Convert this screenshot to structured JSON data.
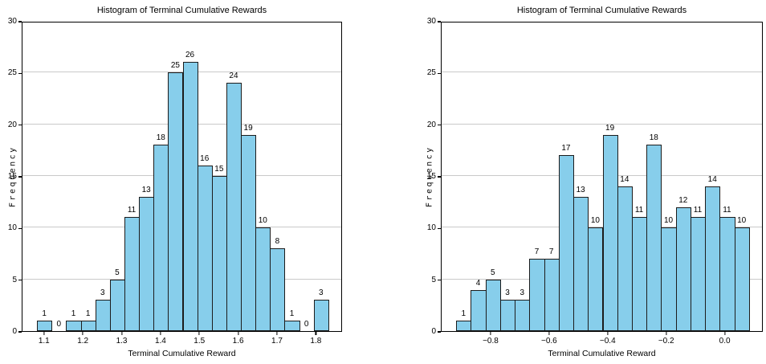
{
  "figure": {
    "background": "#ffffff",
    "text_color": "#000000"
  },
  "chart_data": [
    {
      "type": "bar",
      "subtype": "histogram",
      "title": "Histogram of Terminal Cumulative Rewards",
      "xlabel": "Terminal Cumulative Reward",
      "ylabel": "Frequency",
      "bar_color": "#87CEEB",
      "bar_edge_color": "#1c1c1c",
      "grid_color": "#c9c9c9",
      "grid": "horizontal",
      "legend": "none",
      "bin_start": 1.08,
      "bin_width": 0.0375,
      "values": [
        1,
        0,
        1,
        1,
        3,
        5,
        11,
        13,
        18,
        25,
        26,
        16,
        15,
        24,
        19,
        10,
        8,
        1,
        0,
        3
      ],
      "xlim": [
        1.0425,
        1.8675
      ],
      "ylim": [
        0,
        30
      ],
      "xticks": [
        {
          "v": 1.1,
          "label": "1.1"
        },
        {
          "v": 1.2,
          "label": "1.2"
        },
        {
          "v": 1.3,
          "label": "1.3"
        },
        {
          "v": 1.4,
          "label": "1.4"
        },
        {
          "v": 1.5,
          "label": "1.5"
        },
        {
          "v": 1.6,
          "label": "1.6"
        },
        {
          "v": 1.7,
          "label": "1.7"
        },
        {
          "v": 1.8,
          "label": "1.8"
        }
      ],
      "yticks": [
        {
          "v": 0,
          "label": "0"
        },
        {
          "v": 5,
          "label": "5"
        },
        {
          "v": 10,
          "label": "10"
        },
        {
          "v": 15,
          "label": "15"
        },
        {
          "v": 20,
          "label": "20"
        },
        {
          "v": 25,
          "label": "25"
        },
        {
          "v": 30,
          "label": "30"
        }
      ]
    },
    {
      "type": "bar",
      "subtype": "histogram",
      "title": "Histogram of Terminal Cumulative Rewards",
      "xlabel": "Terminal Cumulative Reward",
      "ylabel": "Frequency",
      "bar_color": "#87CEEB",
      "bar_edge_color": "#1c1c1c",
      "grid_color": "#c9c9c9",
      "grid": "horizontal",
      "legend": "none",
      "bin_start": -0.92,
      "bin_width": 0.05,
      "values": [
        1,
        4,
        5,
        3,
        3,
        7,
        7,
        17,
        13,
        10,
        19,
        14,
        11,
        18,
        10,
        12,
        11,
        14,
        11,
        10
      ],
      "xlim": [
        -0.97,
        0.13
      ],
      "ylim": [
        0,
        30
      ],
      "xticks": [
        {
          "v": -0.8,
          "label": "−0.8"
        },
        {
          "v": -0.6,
          "label": "−0.6"
        },
        {
          "v": -0.4,
          "label": "−0.4"
        },
        {
          "v": -0.2,
          "label": "−0.2"
        },
        {
          "v": 0.0,
          "label": "0.0"
        }
      ],
      "yticks": [
        {
          "v": 0,
          "label": "0"
        },
        {
          "v": 5,
          "label": "5"
        },
        {
          "v": 10,
          "label": "10"
        },
        {
          "v": 15,
          "label": "15"
        },
        {
          "v": 20,
          "label": "20"
        },
        {
          "v": 25,
          "label": "25"
        },
        {
          "v": 30,
          "label": "30"
        }
      ]
    }
  ]
}
